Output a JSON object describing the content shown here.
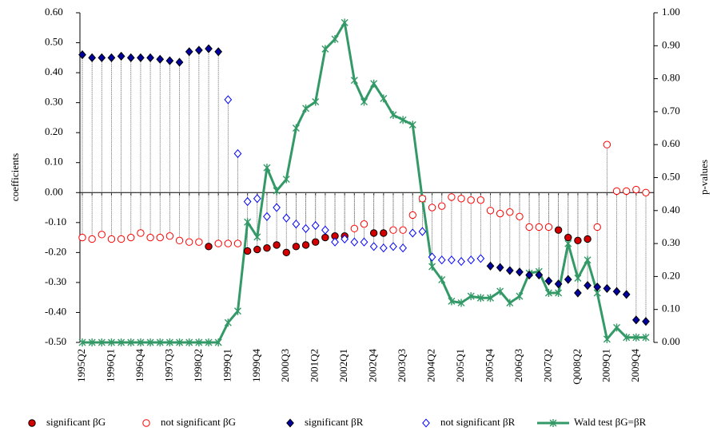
{
  "chart_data": {
    "type": "stem-line",
    "y_label": "coefficients",
    "y2_label": "p-values",
    "categories": [
      "1995Q2",
      null,
      null,
      "1996Q1",
      null,
      null,
      "1996Q4",
      null,
      null,
      "1997Q3",
      null,
      null,
      "1998Q2",
      null,
      null,
      "1999Q1",
      null,
      null,
      "1999Q4",
      null,
      null,
      "2000Q3",
      null,
      null,
      "2001Q2",
      null,
      null,
      "2002Q1",
      null,
      null,
      "2002Q4",
      null,
      null,
      "2003Q3",
      null,
      null,
      "2004Q2",
      null,
      null,
      "2005Q1",
      null,
      null,
      "2005Q4",
      null,
      null,
      "2006Q3",
      null,
      null,
      "2007Q2",
      null,
      null,
      "Q008Q2",
      null,
      null,
      "2009Q1",
      null,
      null,
      "2009Q4",
      null
    ],
    "ylim": [
      -0.5,
      0.6
    ],
    "yticks": [
      {
        "value": -0.5,
        "label": "-0.50"
      },
      {
        "value": -0.4,
        "label": "-0.40"
      },
      {
        "value": -0.3,
        "label": "-0.30"
      },
      {
        "value": -0.2,
        "label": "-0.20"
      },
      {
        "value": -0.1,
        "label": "-0.10"
      },
      {
        "value": 0,
        "label": "0.00"
      },
      {
        "value": 0.1,
        "label": "0.10"
      },
      {
        "value": 0.2,
        "label": "0.20"
      },
      {
        "value": 0.3,
        "label": "0.30"
      },
      {
        "value": 0.4,
        "label": "0.40"
      },
      {
        "value": 0.5,
        "label": "0.50"
      },
      {
        "value": 0.6,
        "label": "0.60"
      }
    ],
    "y2lim": [
      0,
      1
    ],
    "y2ticks": [
      {
        "value": 0,
        "label": "0.00"
      },
      {
        "value": 0.1,
        "label": "0.10"
      },
      {
        "value": 0.2,
        "label": "0.20"
      },
      {
        "value": 0.3,
        "label": "0.30"
      },
      {
        "value": 0.4,
        "label": "0.40"
      },
      {
        "value": 0.5,
        "label": "0.50"
      },
      {
        "value": 0.6,
        "label": "0.60"
      },
      {
        "value": 0.7,
        "label": "0.70"
      },
      {
        "value": 0.8,
        "label": "0.80"
      },
      {
        "value": 0.9,
        "label": "0.90"
      },
      {
        "value": 1,
        "label": "1.00"
      }
    ],
    "series": [
      {
        "name": "significant βG",
        "color": "#d40000",
        "marker": "circle",
        "filled": true,
        "values": [
          null,
          null,
          null,
          null,
          null,
          null,
          null,
          null,
          null,
          null,
          null,
          null,
          null,
          -0.18,
          null,
          null,
          null,
          -0.195,
          -0.19,
          -0.185,
          -0.175,
          -0.2,
          -0.18,
          -0.175,
          -0.165,
          -0.15,
          -0.145,
          -0.145,
          null,
          null,
          -0.135,
          -0.135,
          null,
          null,
          null,
          null,
          null,
          null,
          null,
          null,
          null,
          null,
          null,
          null,
          null,
          null,
          null,
          null,
          null,
          -0.125,
          -0.15,
          -0.16,
          -0.155,
          null,
          null,
          null,
          null,
          null,
          null
        ]
      },
      {
        "name": "not significant βG",
        "color": "#ff0000",
        "marker": "circle",
        "filled": false,
        "values": [
          -0.15,
          -0.155,
          -0.14,
          -0.155,
          -0.155,
          -0.15,
          -0.135,
          -0.15,
          -0.15,
          -0.145,
          -0.16,
          -0.165,
          -0.165,
          null,
          -0.17,
          -0.17,
          -0.17,
          null,
          null,
          null,
          null,
          null,
          null,
          null,
          null,
          null,
          null,
          null,
          -0.12,
          -0.105,
          null,
          null,
          -0.125,
          -0.125,
          -0.075,
          -0.02,
          -0.05,
          -0.045,
          -0.015,
          -0.02,
          -0.025,
          -0.025,
          -0.06,
          -0.07,
          -0.065,
          -0.08,
          -0.115,
          -0.115,
          -0.115,
          null,
          null,
          null,
          null,
          -0.115,
          0.16,
          0.005,
          0.005,
          0.01,
          0
        ]
      },
      {
        "name": "significant βR",
        "color": "#0000a0",
        "marker": "diamond",
        "filled": true,
        "values": [
          0.46,
          0.45,
          0.45,
          0.45,
          0.455,
          0.45,
          0.45,
          0.45,
          0.445,
          0.44,
          0.435,
          0.47,
          0.475,
          0.48,
          0.47,
          null,
          null,
          null,
          null,
          null,
          null,
          null,
          null,
          null,
          null,
          null,
          null,
          null,
          null,
          null,
          null,
          null,
          null,
          null,
          null,
          null,
          null,
          null,
          null,
          null,
          null,
          null,
          -0.245,
          -0.25,
          -0.26,
          -0.265,
          -0.275,
          -0.275,
          -0.295,
          -0.305,
          -0.29,
          -0.335,
          -0.31,
          -0.315,
          -0.32,
          -0.33,
          -0.34,
          -0.425,
          -0.43
        ]
      },
      {
        "name": "not significant βR",
        "color": "#0000ff",
        "marker": "diamond",
        "filled": false,
        "values": [
          null,
          null,
          null,
          null,
          null,
          null,
          null,
          null,
          null,
          null,
          null,
          null,
          null,
          null,
          null,
          0.31,
          0.13,
          -0.03,
          -0.02,
          -0.08,
          -0.05,
          -0.085,
          -0.105,
          -0.12,
          -0.11,
          -0.125,
          -0.165,
          -0.155,
          -0.165,
          -0.165,
          -0.18,
          -0.185,
          -0.18,
          -0.185,
          -0.135,
          -0.13,
          -0.215,
          -0.225,
          -0.225,
          -0.23,
          -0.225,
          -0.22,
          null,
          null,
          null,
          null,
          null,
          null,
          null,
          null,
          null,
          null,
          null,
          null,
          null,
          null,
          null,
          null,
          null
        ]
      },
      {
        "name": "Wald test βG=βR",
        "color": "#339966",
        "marker": "star",
        "axis": "y2",
        "values": [
          0,
          0,
          0,
          0,
          0,
          0,
          0,
          0,
          0,
          0,
          0,
          0,
          0,
          0,
          0,
          0.06,
          0.095,
          0.365,
          0.32,
          0.53,
          0.46,
          0.495,
          0.65,
          0.71,
          0.73,
          0.89,
          0.92,
          0.97,
          0.795,
          0.73,
          0.785,
          0.74,
          0.69,
          0.675,
          0.66,
          0.435,
          0.23,
          0.19,
          0.125,
          0.12,
          0.14,
          0.135,
          0.135,
          0.155,
          0.12,
          0.14,
          0.21,
          0.215,
          0.15,
          0.15,
          0.3,
          0.195,
          0.25,
          0.15,
          0.01,
          0.045,
          0.015,
          0.015,
          0.015
        ]
      }
    ]
  }
}
